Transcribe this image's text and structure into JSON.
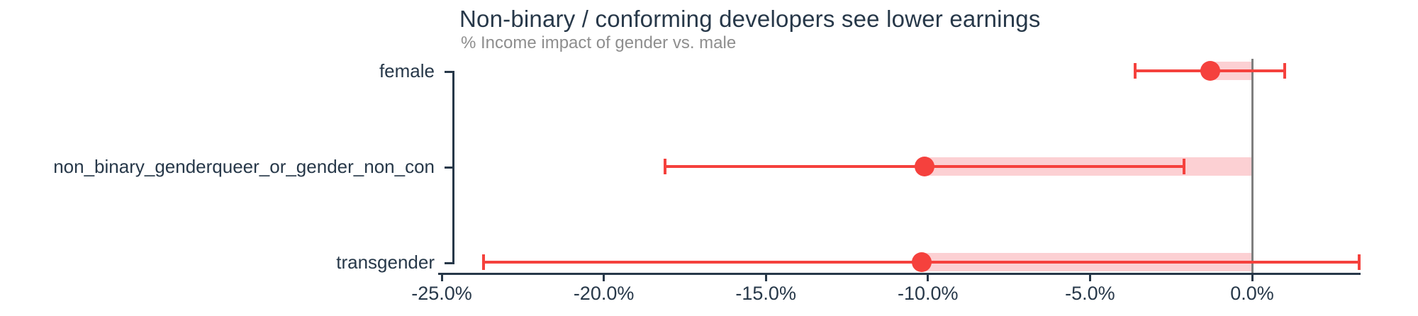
{
  "chart_data": {
    "type": "scatter",
    "chart_kind": "horizontal dot-and-whisker coefficient plot with CI bands",
    "title": "Non-binary / conforming developers see lower earnings",
    "subtitle": "% Income impact of gender vs. male",
    "categories": [
      "female",
      "non_binary_genderqueer_or_gender_non_con",
      "transgender"
    ],
    "series": [
      {
        "name": "% income impact of gender vs. male (point estimate with confidence interval)",
        "estimates": [
          -1.3,
          -10.1,
          -10.2
        ],
        "ci_low": [
          -3.6,
          -18.1,
          -23.7
        ],
        "ci_high": [
          1.0,
          -2.1,
          3.3
        ]
      }
    ],
    "x_tick_values": [
      -25,
      -20,
      -15,
      -10,
      -5,
      0
    ],
    "x_tick_labels": [
      "-25.0%",
      "-20.0%",
      "-15.0%",
      "-10.0%",
      "-5.0%",
      "0.0%"
    ],
    "xlim": [
      -25.1,
      3.35
    ],
    "reference_line_x": 0,
    "grid": "off",
    "legend": "none",
    "colors": {
      "estimate_red": "#f5413d",
      "ci_band_pink": "#fcd0d3",
      "axis_dark": "#273849",
      "text_dark": "#273849",
      "subtitle_gray": "#8e8e8e",
      "zero_line_gray": "#7f7f7f",
      "background": "#ffffff"
    }
  }
}
